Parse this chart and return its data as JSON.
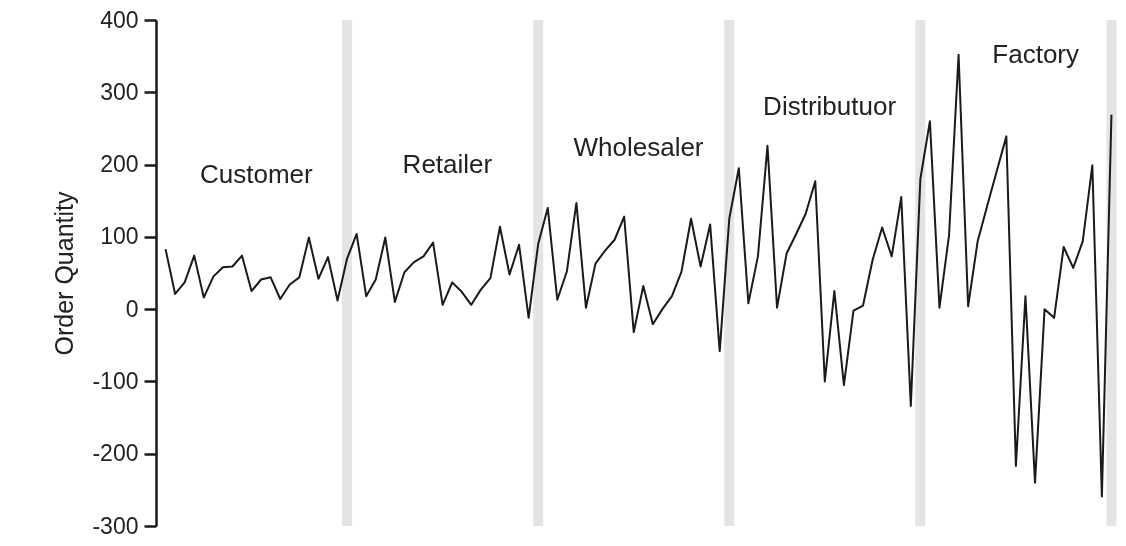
{
  "chart_data": {
    "type": "line",
    "ylabel": "Order Quantity",
    "categories": [
      null,
      null,
      null,
      null,
      null,
      null,
      null,
      null,
      null,
      null,
      null,
      null,
      null,
      null,
      null,
      null,
      null,
      null,
      null,
      null,
      null,
      null,
      null,
      null,
      null,
      null,
      null,
      null,
      null,
      null,
      null,
      null,
      null,
      null,
      null,
      null,
      null,
      null,
      null,
      null,
      null,
      null,
      null,
      null,
      null,
      null,
      null,
      null,
      null,
      null,
      null,
      null,
      null,
      null,
      null,
      null,
      null,
      null,
      null,
      null,
      null,
      null,
      null,
      null,
      null,
      null,
      null,
      null,
      null,
      null,
      null,
      null,
      null,
      null,
      null,
      null,
      null,
      null,
      null,
      null,
      null,
      null,
      null,
      null,
      null,
      null,
      null,
      null,
      null,
      null,
      null,
      null,
      null,
      null,
      null,
      null,
      null,
      null,
      null,
      null
    ],
    "series": [
      {
        "color": "#1a1a1a",
        "values": [
          83,
          21,
          37,
          74,
          16,
          45,
          58,
          59,
          74,
          25,
          41,
          44,
          14,
          34,
          44,
          99,
          42,
          72,
          12,
          70,
          104,
          18,
          41,
          99,
          10,
          51,
          65,
          73,
          92,
          6,
          37,
          24,
          6,
          27,
          43,
          114,
          48,
          89,
          -12,
          90,
          140,
          13,
          52,
          147,
          2,
          63,
          81,
          96,
          128,
          -32,
          32,
          -21,
          0,
          18,
          52,
          125,
          59,
          117,
          -58,
          125,
          195,
          8,
          73,
          226,
          2,
          77,
          104,
          132,
          177,
          -100,
          25,
          -105,
          -2,
          5,
          68,
          113,
          73,
          155,
          -134,
          180,
          260,
          2,
          102,
          352,
          4,
          94,
          143,
          191,
          239,
          -217,
          18,
          -240,
          0,
          -12,
          86,
          57,
          94,
          199,
          -259,
          269
        ]
      }
    ],
    "ylim": [
      -300,
      400
    ],
    "yticks": [
      -300,
      -200,
      -100,
      0,
      100,
      200,
      300,
      400
    ],
    "tick_labels": "y",
    "grid": "x",
    "marker": "none",
    "line_style": "solid",
    "annotations": [
      "Customer",
      "Retailer",
      "Wholesaler",
      "Distributuor",
      "Factory"
    ]
  }
}
